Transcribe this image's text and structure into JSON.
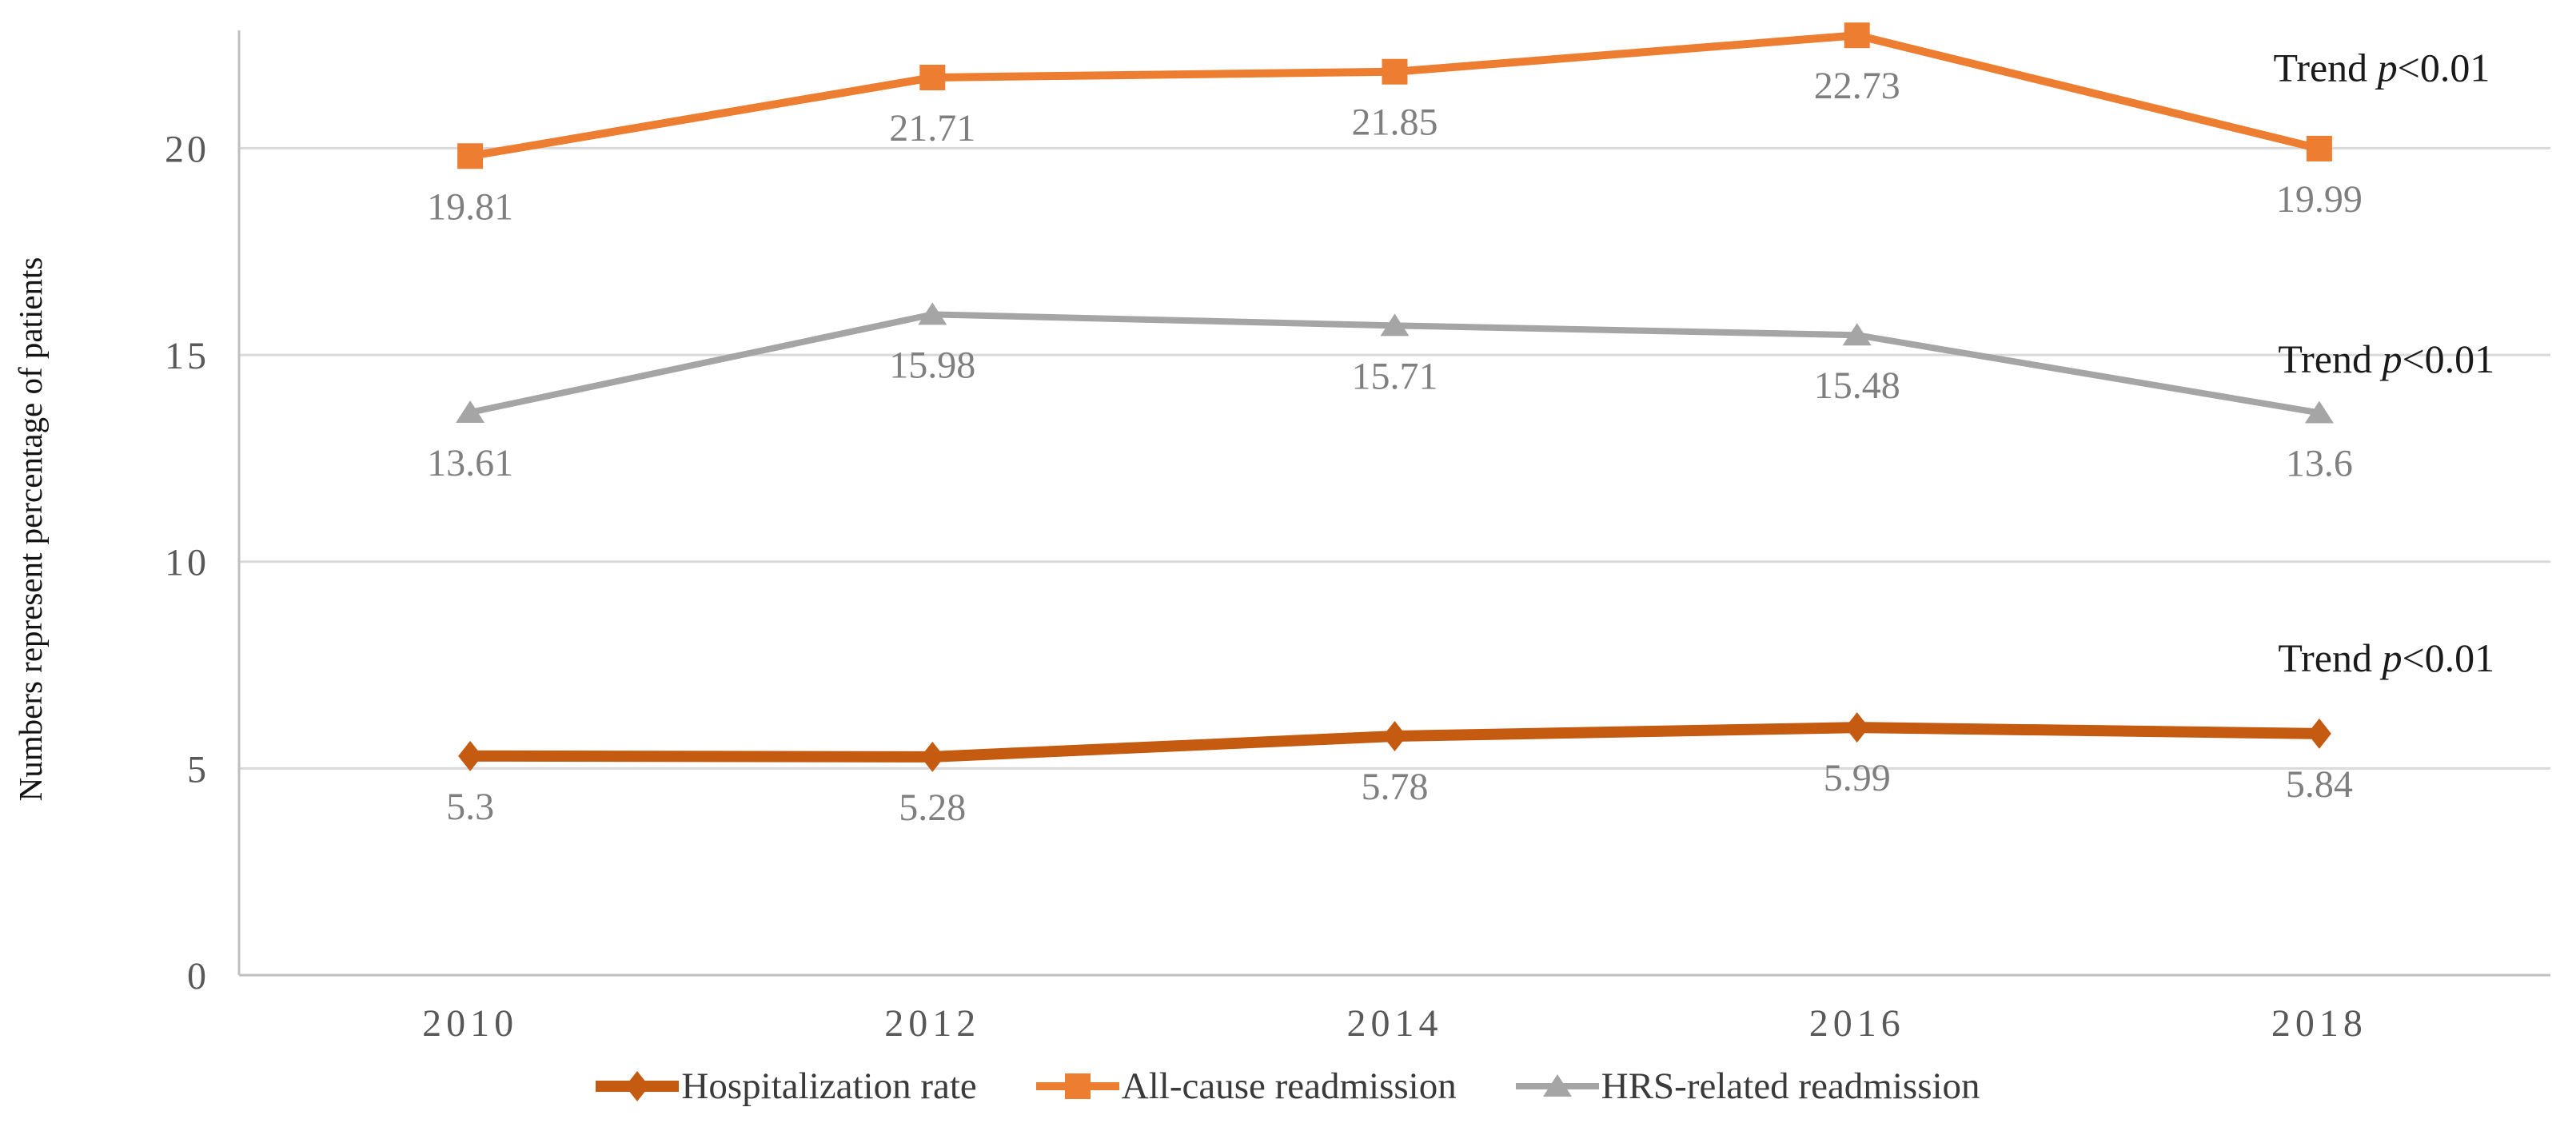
{
  "chart_data": {
    "type": "line",
    "title": "",
    "xlabel": "",
    "ylabel": "Numbers represent percentage of patients",
    "categories": [
      "2010",
      "2012",
      "2014",
      "2016",
      "2018"
    ],
    "yticks": [
      0,
      5,
      10,
      15,
      20
    ],
    "ylim": [
      0,
      22.85
    ],
    "grid": true,
    "legend_position": "bottom",
    "data_labels": true,
    "data_label_color": "#7F7F7F",
    "annotation_color": "#1A1A1A",
    "series": [
      {
        "name": "Hospitalization rate",
        "values": [
          5.3,
          5.28,
          5.78,
          5.99,
          5.84
        ],
        "color": "#C55A11",
        "marker": "diamond"
      },
      {
        "name": "All-cause readmission",
        "values": [
          19.81,
          21.71,
          21.85,
          22.73,
          19.99
        ],
        "color": "#ED7D31",
        "marker": "square"
      },
      {
        "name": "HRS-related readmission",
        "values": [
          13.61,
          15.98,
          15.71,
          15.48,
          13.6
        ],
        "color": "#A5A5A5",
        "marker": "triangle"
      }
    ],
    "annotations": [
      {
        "pre": "Trend ",
        "italic": "p",
        "post": "<0.01",
        "x_frac": 0.927,
        "y_value": 21.95,
        "series": "All-cause readmission"
      },
      {
        "pre": "Trend ",
        "italic": "p",
        "post": "<0.01",
        "x_frac": 0.929,
        "y_value": 14.9,
        "series": "HRS-related readmission"
      },
      {
        "pre": "Trend ",
        "italic": "p",
        "post": "<0.01",
        "x_frac": 0.929,
        "y_value": 7.67,
        "series": "Hospitalization rate"
      }
    ]
  }
}
